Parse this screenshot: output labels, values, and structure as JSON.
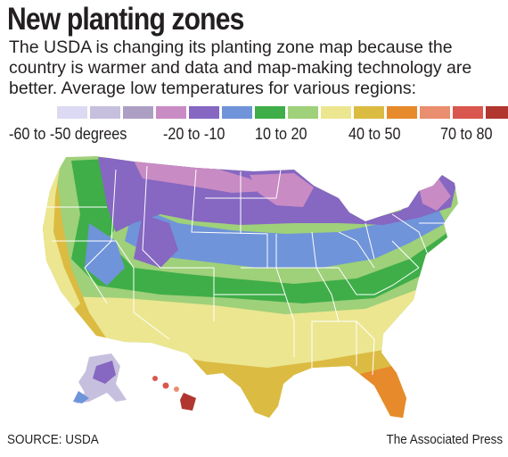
{
  "title": "New planting zones",
  "description": "The USDA is changing its planting zone map because the country is warmer and data and map-making technology are better. Average low temperatures for various regions:",
  "legend": {
    "colors": [
      "#dcdaf2",
      "#c6c0de",
      "#ad9fc4",
      "#c98bc4",
      "#8667c2",
      "#6f94d9",
      "#3fae48",
      "#9fd07a",
      "#ece690",
      "#dcbb42",
      "#e78a2b",
      "#e98e6e",
      "#d9574e",
      "#b0362f"
    ],
    "labels": [
      "-60 to -50 degrees",
      "-20 to -10",
      "10 to 20",
      "40 to 50",
      "70 to 80"
    ]
  },
  "footer": {
    "source": "SOURCE: USDA",
    "credit": "The Associated Press"
  }
}
